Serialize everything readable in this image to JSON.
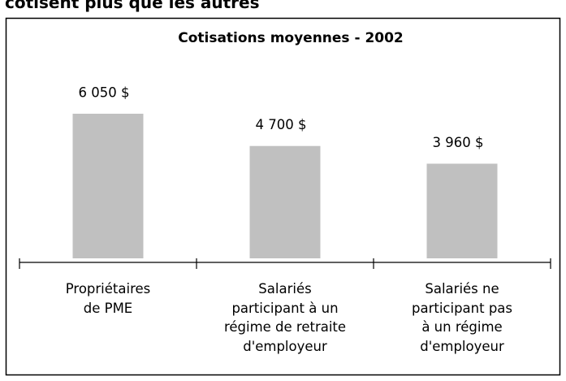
{
  "heading": "cotisent plus que les autres",
  "chart_data": {
    "type": "bar",
    "title": "Cotisations moyennes - 2002",
    "categories": [
      "Propriétaires\nde PME",
      "Salariés\nparticipant à un\nrégime de retraite\nd'employeur",
      "Salariés ne\nparticipant pas\nà un régime\nd'employeur"
    ],
    "values": [
      6050,
      4700,
      3960
    ],
    "value_labels": [
      "6 050 $",
      "4 700 $",
      "3 960 $"
    ],
    "color": "#c0c0c0"
  }
}
